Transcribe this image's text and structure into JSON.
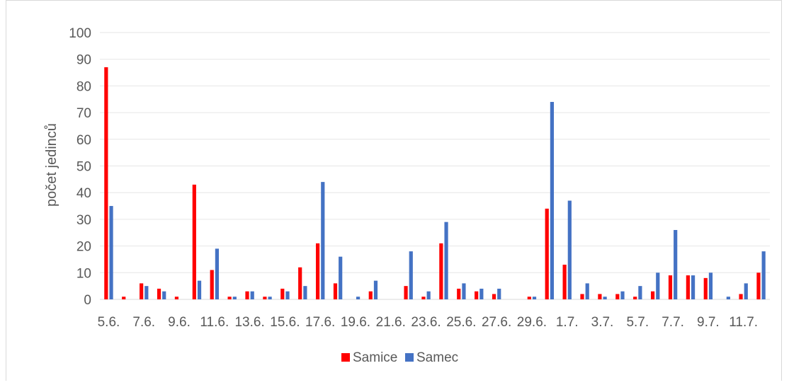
{
  "chart_data": {
    "type": "bar",
    "title": "",
    "xlabel": "",
    "ylabel": "počet jedinců",
    "ylim": [
      0,
      100
    ],
    "yticks": [
      0,
      10,
      20,
      30,
      40,
      50,
      60,
      70,
      80,
      90,
      100
    ],
    "grid": true,
    "legend_position": "bottom",
    "categories": [
      "5.6.",
      "6.6.",
      "7.6.",
      "8.6.",
      "9.6.",
      "10.6.",
      "11.6.",
      "12.6.",
      "13.6.",
      "14.6.",
      "15.6.",
      "16.6.",
      "17.6.",
      "18.6.",
      "19.6.",
      "20.6.",
      "21.6.",
      "22.6.",
      "23.6.",
      "24.6.",
      "25.6.",
      "26.6.",
      "27.6.",
      "28.6.",
      "29.6.",
      "30.6.",
      "1.7.",
      "2.7.",
      "3.7.",
      "4.7.",
      "5.7.",
      "6.7.",
      "7.7.",
      "8.7.",
      "9.7.",
      "10.7.",
      "11.7.",
      "12.7."
    ],
    "x_tick_labels": [
      "5.6.",
      "7.6.",
      "9.6.",
      "11.6.",
      "13.6.",
      "15.6.",
      "17.6.",
      "19.6.",
      "21.6.",
      "23.6.",
      "25.6.",
      "27.6.",
      "29.6.",
      "1.7.",
      "3.7.",
      "5.7.",
      "7.7.",
      "9.7.",
      "11.7."
    ],
    "series": [
      {
        "name": "Samice",
        "color": "#ff0000",
        "values": [
          87,
          1,
          6,
          4,
          1,
          43,
          11,
          1,
          3,
          1,
          4,
          12,
          21,
          6,
          0,
          3,
          0,
          5,
          1,
          21,
          4,
          3,
          2,
          0,
          1,
          34,
          13,
          2,
          2,
          2,
          1,
          3,
          9,
          9,
          8,
          0,
          2,
          10
        ]
      },
      {
        "name": "Samec",
        "color": "#4472c4",
        "values": [
          35,
          0,
          5,
          3,
          0,
          7,
          19,
          1,
          3,
          1,
          3,
          5,
          44,
          16,
          1,
          7,
          0,
          18,
          3,
          29,
          6,
          4,
          4,
          0,
          1,
          74,
          37,
          6,
          1,
          3,
          5,
          10,
          26,
          9,
          10,
          1,
          6,
          18
        ]
      }
    ]
  }
}
